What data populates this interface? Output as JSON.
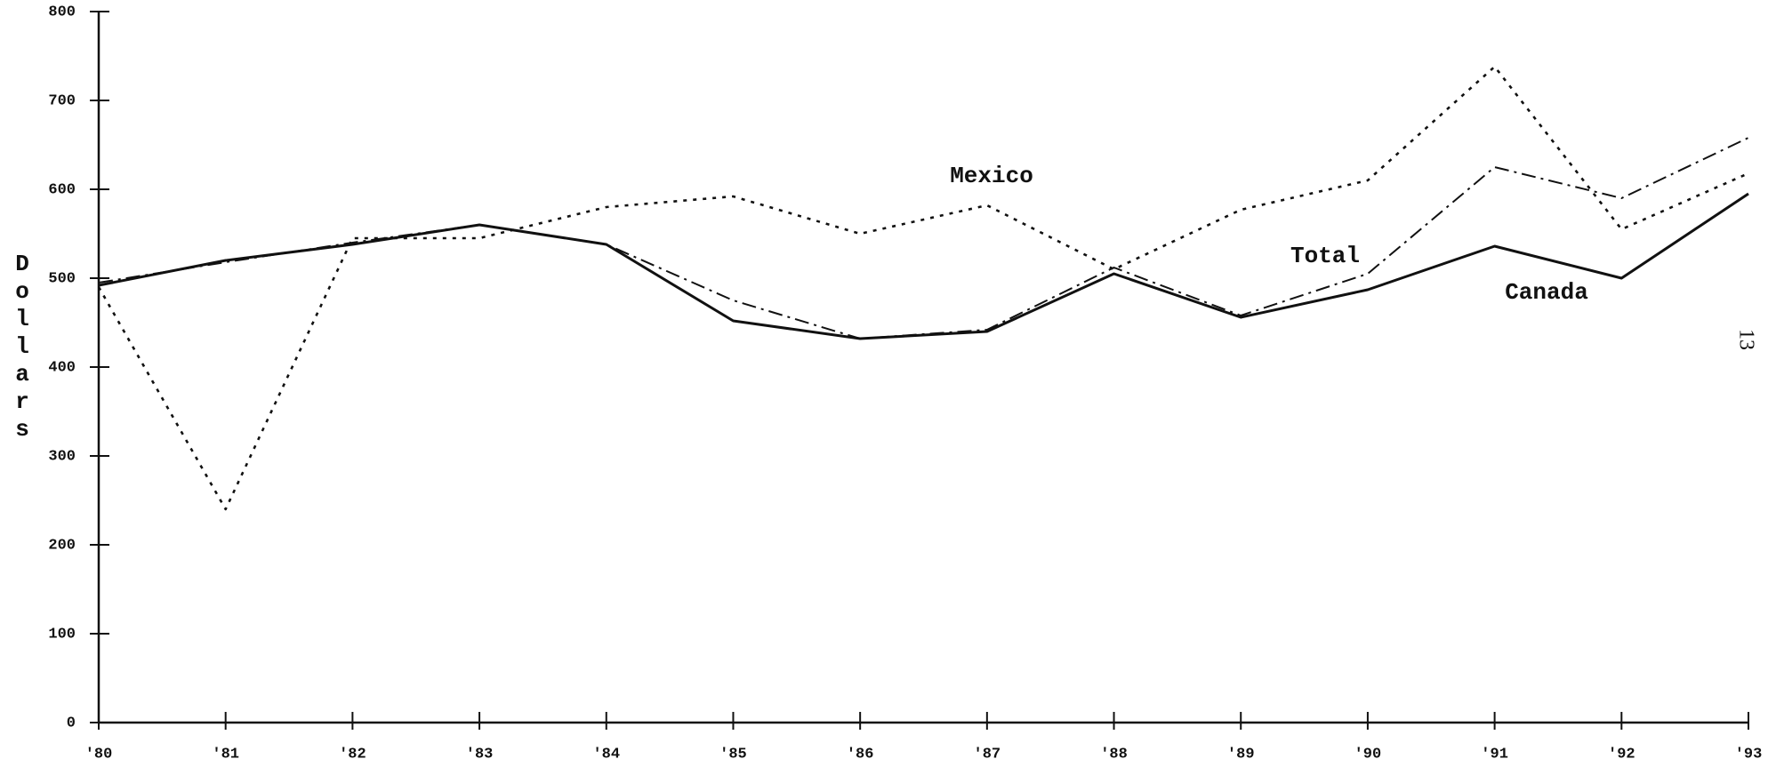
{
  "chart_data": {
    "type": "line",
    "y_label": "Dollars",
    "page_number": "13",
    "categories": [
      "'80",
      "'81",
      "'82",
      "'83",
      "'84",
      "'85",
      "'86",
      "'87",
      "'88",
      "'89",
      "'90",
      "'91",
      "'92",
      "'93"
    ],
    "series": [
      {
        "name": "Canada",
        "color": "#111111",
        "values": [
          492,
          520,
          538,
          560,
          538,
          452,
          432,
          440,
          505,
          456,
          487,
          536,
          500,
          595
        ]
      },
      {
        "name": "Mexico",
        "color": "#111111",
        "values": [
          490,
          240,
          545,
          545,
          580,
          592,
          550,
          582,
          510,
          577,
          610,
          738,
          555,
          618
        ]
      },
      {
        "name": "Total",
        "color": "#111111",
        "values": [
          495,
          518,
          540,
          560,
          538,
          475,
          432,
          442,
          512,
          458,
          505,
          625,
          590,
          658
        ]
      }
    ],
    "ylim": [
      0,
      800
    ],
    "yticks": [
      0,
      100,
      200,
      300,
      400,
      500,
      600,
      700,
      800
    ]
  }
}
